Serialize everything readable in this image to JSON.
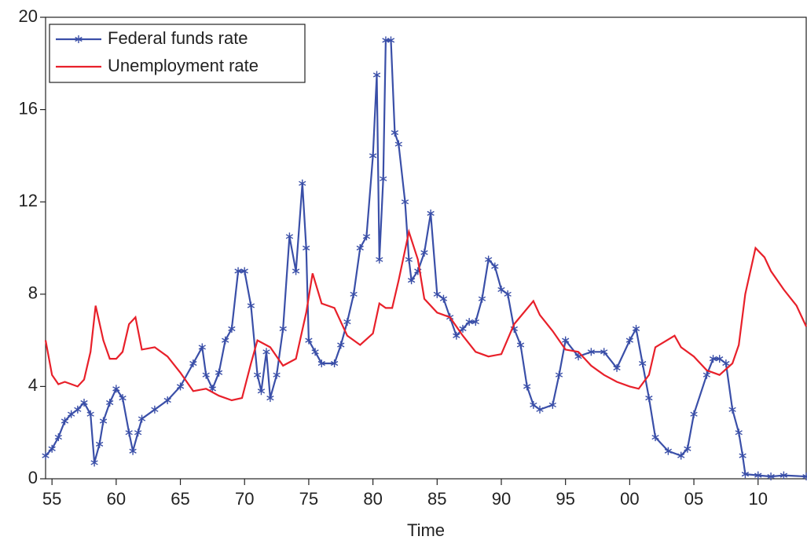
{
  "chart_data": {
    "type": "line",
    "x_label": "Time",
    "xlim": [
      1954.5,
      2013.75
    ],
    "ylim": [
      0,
      20
    ],
    "yticks": [
      0,
      4,
      8,
      12,
      16,
      20
    ],
    "xticks": [
      {
        "value": 1955,
        "label": "55"
      },
      {
        "value": 1960,
        "label": "60"
      },
      {
        "value": 1965,
        "label": "65"
      },
      {
        "value": 1970,
        "label": "70"
      },
      {
        "value": 1975,
        "label": "75"
      },
      {
        "value": 1980,
        "label": "80"
      },
      {
        "value": 1985,
        "label": "85"
      },
      {
        "value": 1990,
        "label": "90"
      },
      {
        "value": 1995,
        "label": "95"
      },
      {
        "value": 2000,
        "label": "00"
      },
      {
        "value": 2005,
        "label": "05"
      },
      {
        "value": 2010,
        "label": "10"
      }
    ],
    "legend": "upper left",
    "series": [
      {
        "name": "Federal funds rate",
        "color": "#3a4fa8",
        "marker": "asterisk",
        "x": [
          1954.5,
          1955,
          1955.5,
          1956,
          1956.5,
          1957,
          1957.5,
          1958,
          1958.3,
          1958.7,
          1959,
          1959.5,
          1960,
          1960.5,
          1961,
          1961.3,
          1961.7,
          1962,
          1963,
          1964,
          1965,
          1966,
          1966.7,
          1967,
          1967.5,
          1968,
          1968.5,
          1969,
          1969.5,
          1970,
          1970.5,
          1971,
          1971.3,
          1971.7,
          1972,
          1972.5,
          1973,
          1973.5,
          1974,
          1974.5,
          1974.8,
          1975,
          1975.5,
          1976,
          1977,
          1977.5,
          1978,
          1978.5,
          1979,
          1979.5,
          1980,
          1980.3,
          1980.5,
          1980.8,
          1981,
          1981.4,
          1981.7,
          1982,
          1982.5,
          1982.8,
          1983,
          1983.5,
          1984,
          1984.5,
          1985,
          1985.5,
          1986,
          1986.5,
          1987,
          1987.5,
          1988,
          1988.5,
          1989,
          1989.5,
          1990,
          1990.5,
          1991,
          1991.5,
          1992,
          1992.5,
          1993,
          1994,
          1994.5,
          1995,
          1996,
          1997,
          1998,
          1999,
          2000,
          2000.5,
          2001,
          2001.5,
          2002,
          2003,
          2004,
          2004.5,
          2005,
          2006,
          2006.5,
          2007,
          2007.5,
          2008,
          2008.5,
          2008.8,
          2009,
          2010,
          2011,
          2012,
          2013.75
        ],
        "values": [
          1.0,
          1.3,
          1.8,
          2.5,
          2.8,
          3.0,
          3.3,
          2.8,
          0.7,
          1.5,
          2.5,
          3.3,
          3.9,
          3.5,
          2.0,
          1.2,
          2.0,
          2.6,
          3.0,
          3.4,
          4.0,
          5.0,
          5.7,
          4.5,
          3.9,
          4.6,
          6.0,
          6.5,
          9.0,
          9.0,
          7.5,
          4.5,
          3.8,
          5.5,
          3.5,
          4.5,
          6.5,
          10.5,
          9.0,
          12.8,
          10.0,
          6.0,
          5.5,
          5.0,
          5.0,
          5.8,
          6.8,
          8.0,
          10.0,
          10.5,
          14.0,
          17.5,
          9.5,
          13.0,
          19.0,
          19.0,
          15.0,
          14.5,
          12.0,
          9.5,
          8.6,
          9.0,
          9.8,
          11.5,
          8.0,
          7.8,
          7.0,
          6.2,
          6.5,
          6.8,
          6.8,
          7.8,
          9.5,
          9.2,
          8.2,
          8.0,
          6.5,
          5.8,
          4.0,
          3.2,
          3.0,
          3.2,
          4.5,
          6.0,
          5.3,
          5.5,
          5.5,
          4.8,
          6.0,
          6.5,
          5.0,
          3.5,
          1.8,
          1.2,
          1.0,
          1.3,
          2.8,
          4.5,
          5.2,
          5.2,
          5.0,
          3.0,
          2.0,
          1.0,
          0.2,
          0.15,
          0.1,
          0.15,
          0.1
        ]
      },
      {
        "name": "Unemployment rate",
        "color": "#e8202a",
        "x": [
          1954.5,
          1955,
          1955.5,
          1956,
          1957,
          1957.5,
          1958,
          1958.4,
          1959,
          1959.5,
          1960,
          1960.5,
          1961,
          1961.5,
          1962,
          1963,
          1964,
          1965,
          1966,
          1967,
          1968,
          1969,
          1969.8,
          1970.5,
          1971,
          1972,
          1973,
          1974,
          1974.8,
          1975.3,
          1976,
          1977,
          1978,
          1979,
          1980,
          1980.5,
          1981,
          1981.5,
          1982,
          1982.8,
          1983.5,
          1984,
          1985,
          1986,
          1987,
          1988,
          1989,
          1990,
          1991,
          1992.5,
          1993,
          1994,
          1995,
          1996,
          1997,
          1998,
          1999,
          2000,
          2000.7,
          2001.5,
          2002,
          2003.5,
          2004,
          2005,
          2006,
          2007,
          2008,
          2008.5,
          2009,
          2009.8,
          2010.5,
          2011,
          2012,
          2013,
          2013.75
        ],
        "values": [
          6.0,
          4.5,
          4.1,
          4.2,
          4.0,
          4.3,
          5.5,
          7.5,
          6.0,
          5.2,
          5.2,
          5.5,
          6.7,
          7.0,
          5.6,
          5.7,
          5.3,
          4.6,
          3.8,
          3.9,
          3.6,
          3.4,
          3.5,
          5.0,
          6.0,
          5.7,
          4.9,
          5.2,
          7.2,
          8.9,
          7.6,
          7.4,
          6.2,
          5.8,
          6.3,
          7.6,
          7.4,
          7.4,
          8.6,
          10.7,
          9.5,
          7.8,
          7.2,
          7.0,
          6.2,
          5.5,
          5.3,
          5.4,
          6.7,
          7.7,
          7.1,
          6.4,
          5.6,
          5.5,
          4.9,
          4.5,
          4.2,
          4.0,
          3.9,
          4.5,
          5.7,
          6.2,
          5.7,
          5.3,
          4.7,
          4.5,
          5.0,
          5.8,
          8.0,
          10.0,
          9.6,
          9.0,
          8.2,
          7.5,
          6.6
        ]
      }
    ]
  }
}
